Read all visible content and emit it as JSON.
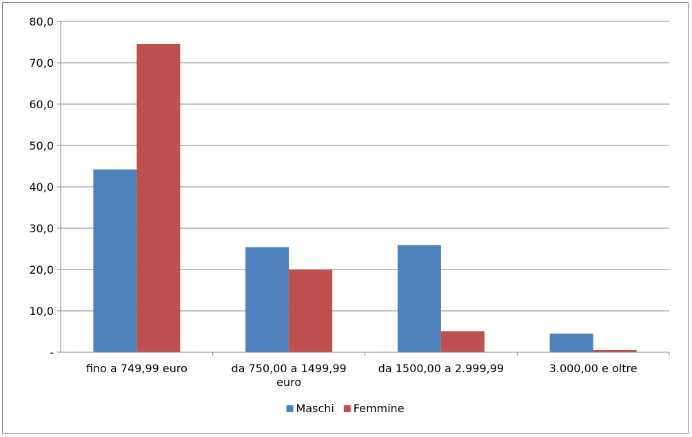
{
  "chart_data": {
    "type": "bar",
    "categories": [
      [
        "fino a 749,99 euro"
      ],
      [
        "da 750,00 a 1499,99",
        "euro"
      ],
      [
        "da 1500,00 a 2.999,99"
      ],
      [
        "3.000,00 e oltre"
      ]
    ],
    "series": [
      {
        "name": "Maschi",
        "color": "#4f81bd",
        "values": [
          44.2,
          25.4,
          25.9,
          4.5
        ]
      },
      {
        "name": "Femmine",
        "color": "#c0504d",
        "values": [
          74.5,
          19.9,
          5.1,
          0.5
        ]
      }
    ],
    "ylim": [
      0,
      80
    ],
    "yticks": [
      {
        "value": 0,
        "label": "-"
      },
      {
        "value": 10,
        "label": "10,0"
      },
      {
        "value": 20,
        "label": "20,0"
      },
      {
        "value": 30,
        "label": "30,0"
      },
      {
        "value": 40,
        "label": "40,0"
      },
      {
        "value": 50,
        "label": "50,0"
      },
      {
        "value": 60,
        "label": "60,0"
      },
      {
        "value": 70,
        "label": "70,0"
      },
      {
        "value": 80,
        "label": "80,0"
      }
    ],
    "grid": true,
    "legend_position": "bottom",
    "gridline_color": "#868686"
  }
}
